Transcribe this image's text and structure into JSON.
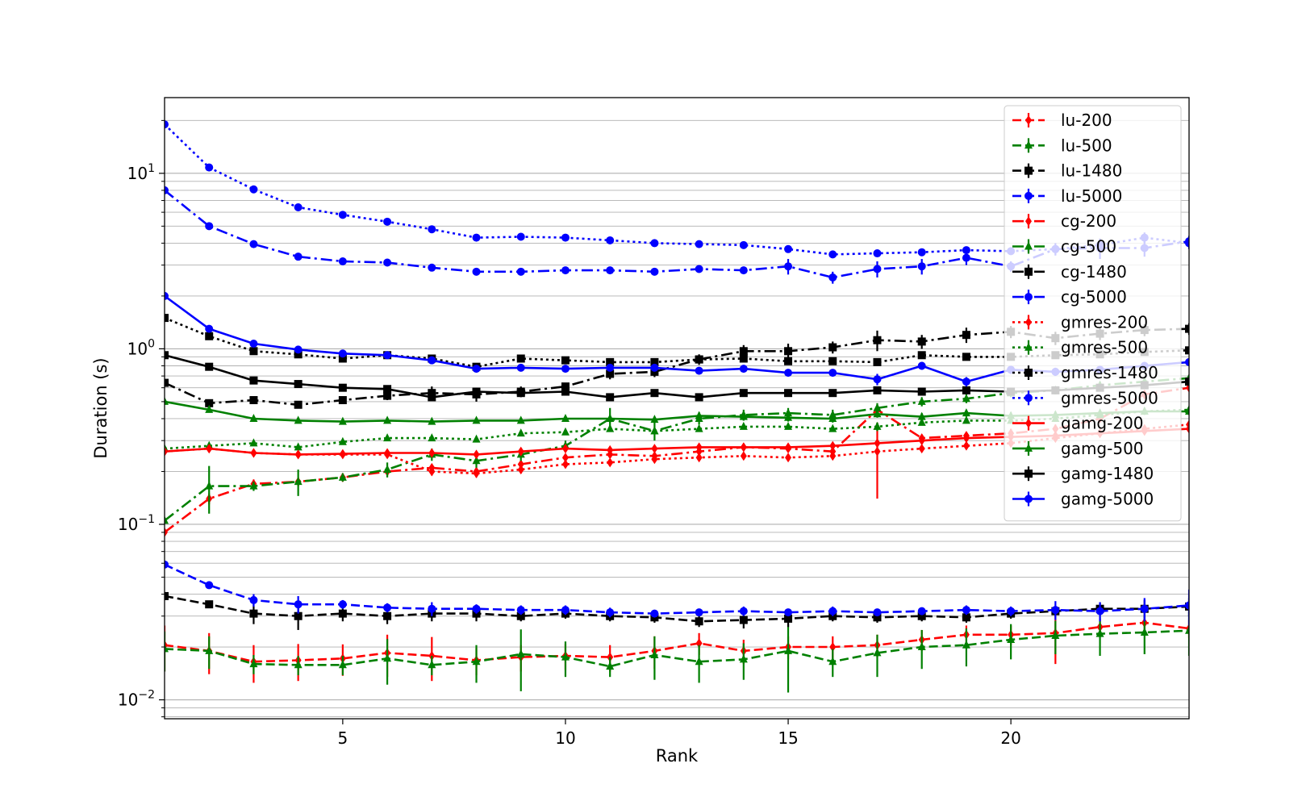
{
  "chart_data": {
    "type": "line",
    "title": "",
    "xlabel": "Rank",
    "ylabel": "Duration (s)",
    "xlim": [
      1,
      24
    ],
    "ylim": [
      0.0078,
      27
    ],
    "yscale": "log",
    "grid": "y-major-and-minor",
    "legend_position": "top-right",
    "x": [
      1,
      2,
      3,
      4,
      5,
      6,
      7,
      8,
      9,
      10,
      11,
      12,
      13,
      14,
      15,
      16,
      17,
      18,
      19,
      20,
      21,
      22,
      23,
      24
    ],
    "x_ticks": [
      {
        "value": 5,
        "label": "5"
      },
      {
        "value": 10,
        "label": "10"
      },
      {
        "value": 15,
        "label": "15"
      },
      {
        "value": 20,
        "label": "20"
      }
    ],
    "y_ticks": [
      {
        "value": 0.01,
        "base": "10",
        "exp": "−2"
      },
      {
        "value": 0.1,
        "base": "10",
        "exp": "−1"
      },
      {
        "value": 1,
        "base": "10",
        "exp": "0"
      },
      {
        "value": 10,
        "base": "10",
        "exp": "1"
      }
    ],
    "series": [
      {
        "name": "lu-200",
        "color": "#ff0000",
        "dash": "dashed",
        "marker": "diamond",
        "values": [
          0.0205,
          0.019,
          0.0165,
          0.0168,
          0.0172,
          0.0185,
          0.0178,
          0.0168,
          0.0175,
          0.0178,
          0.0175,
          0.019,
          0.021,
          0.019,
          0.02,
          0.02,
          0.0205,
          0.022,
          0.0235,
          0.0235,
          0.024,
          0.026,
          0.0275,
          0.0255
        ],
        "err": [
          0.006,
          0.005,
          0.004,
          0.004,
          0.0035,
          0.005,
          0.005,
          0.003,
          0.003,
          0.003,
          0.003,
          0.004,
          0.003,
          0.003,
          0.003,
          0.003,
          0.003,
          0.003,
          0.003,
          0.003,
          0.008,
          0.003,
          0.003,
          0.003
        ]
      },
      {
        "name": "lu-500",
        "color": "#008000",
        "dash": "dashed",
        "marker": "triangle",
        "values": [
          0.0195,
          0.019,
          0.016,
          0.0158,
          0.0158,
          0.0172,
          0.0158,
          0.0165,
          0.0182,
          0.0175,
          0.0155,
          0.018,
          0.0165,
          0.017,
          0.019,
          0.0165,
          0.0185,
          0.02,
          0.0205,
          0.022,
          0.0232,
          0.0238,
          0.0242,
          0.0248
        ],
        "err": [
          0.005,
          0.004,
          0.002,
          0.002,
          0.002,
          0.005,
          0.002,
          0.004,
          0.007,
          0.004,
          0.002,
          0.005,
          0.004,
          0.004,
          0.008,
          0.003,
          0.005,
          0.005,
          0.005,
          0.005,
          0.005,
          0.006,
          0.006,
          0.007
        ]
      },
      {
        "name": "lu-1480",
        "color": "#000000",
        "dash": "dashed",
        "marker": "square",
        "values": [
          0.039,
          0.035,
          0.031,
          0.03,
          0.031,
          0.03,
          0.031,
          0.031,
          0.03,
          0.031,
          0.03,
          0.0295,
          0.028,
          0.0285,
          0.029,
          0.03,
          0.0295,
          0.03,
          0.0295,
          0.031,
          0.032,
          0.033,
          0.033,
          0.034
        ],
        "err": [
          0.001,
          0.001,
          0.004,
          0.005,
          0.003,
          0.003,
          0.003,
          0.003,
          0.002,
          0.002,
          0.002,
          0.002,
          0.002,
          0.003,
          0.003,
          0.002,
          0.002,
          0.002,
          0.002,
          0.002,
          0.002,
          0.003,
          0.004,
          0.004
        ]
      },
      {
        "name": "lu-5000",
        "color": "#0000ff",
        "dash": "dashed",
        "marker": "circle",
        "values": [
          0.059,
          0.045,
          0.037,
          0.035,
          0.035,
          0.0335,
          0.033,
          0.033,
          0.0325,
          0.0325,
          0.0315,
          0.031,
          0.0315,
          0.032,
          0.0315,
          0.032,
          0.0315,
          0.032,
          0.0325,
          0.032,
          0.0325,
          0.032,
          0.033,
          0.0345
        ],
        "err": [
          0.001,
          0.001,
          0.003,
          0.004,
          0.002,
          0.002,
          0.003,
          0.002,
          0.002,
          0.002,
          0.002,
          0.001,
          0.001,
          0.002,
          0.001,
          0.002,
          0.001,
          0.001,
          0.002,
          0.002,
          0.004,
          0.004,
          0.005,
          0.008
        ]
      },
      {
        "name": "cg-200",
        "color": "#ff0000",
        "dash": "dashdot",
        "marker": "diamond",
        "values": [
          0.09,
          0.14,
          0.17,
          0.175,
          0.185,
          0.2,
          0.21,
          0.2,
          0.22,
          0.24,
          0.25,
          0.245,
          0.26,
          0.275,
          0.27,
          0.26,
          0.45,
          0.31,
          0.32,
          0.33,
          0.35,
          0.4,
          0.55,
          0.6
        ],
        "err": [
          0,
          0.01,
          0.01,
          0.01,
          0.01,
          0.01,
          0.01,
          0.01,
          0.01,
          0.01,
          0.01,
          0.01,
          0.01,
          0.01,
          0.01,
          0.01,
          0.03,
          0.01,
          0.01,
          0.02,
          0.02,
          0.02,
          0.03,
          0.03
        ]
      },
      {
        "name": "cg-500",
        "color": "#008000",
        "dash": "dashdot",
        "marker": "triangle",
        "values": [
          0.105,
          0.165,
          0.165,
          0.175,
          0.185,
          0.205,
          0.25,
          0.23,
          0.25,
          0.28,
          0.4,
          0.34,
          0.4,
          0.42,
          0.43,
          0.42,
          0.46,
          0.5,
          0.52,
          0.56,
          0.58,
          0.62,
          0.65,
          0.68
        ],
        "err": [
          0,
          0.05,
          0.01,
          0.03,
          0.01,
          0.02,
          0.02,
          0.02,
          0.02,
          0.02,
          0.06,
          0.04,
          0.03,
          0.03,
          0.03,
          0.03,
          0.03,
          0.03,
          0.03,
          0.03,
          0.03,
          0.03,
          0.03,
          0.03
        ]
      },
      {
        "name": "cg-1480",
        "color": "#000000",
        "dash": "dashdot",
        "marker": "square",
        "values": [
          0.64,
          0.49,
          0.51,
          0.48,
          0.51,
          0.54,
          0.56,
          0.55,
          0.57,
          0.61,
          0.72,
          0.74,
          0.87,
          0.97,
          0.97,
          1.02,
          1.12,
          1.1,
          1.2,
          1.25,
          1.15,
          1.22,
          1.28,
          1.3
        ],
        "err": [
          0,
          0.02,
          0.02,
          0.02,
          0.02,
          0.03,
          0.05,
          0.05,
          0.04,
          0.03,
          0.05,
          0.05,
          0.06,
          0.08,
          0.1,
          0.08,
          0.15,
          0.1,
          0.12,
          0.1,
          0.1,
          0.1,
          0.1,
          0.1
        ]
      },
      {
        "name": "cg-5000",
        "color": "#0000ff",
        "dash": "dashdot",
        "marker": "circle",
        "values": [
          8.0,
          5.0,
          3.95,
          3.35,
          3.15,
          3.1,
          2.9,
          2.75,
          2.75,
          2.8,
          2.8,
          2.75,
          2.85,
          2.8,
          2.95,
          2.55,
          2.85,
          2.95,
          3.3,
          2.95,
          3.7,
          3.75,
          3.75,
          4.1
        ],
        "err": [
          0,
          0,
          0.05,
          0.05,
          0.05,
          0.05,
          0.05,
          0.05,
          0.05,
          0.05,
          0.05,
          0.05,
          0.05,
          0.05,
          0.3,
          0.2,
          0.3,
          0.3,
          0.3,
          0.2,
          0.3,
          0.5,
          0.4,
          0.3
        ]
      },
      {
        "name": "gmres-200",
        "color": "#ff0000",
        "dash": "dotted",
        "marker": "diamond",
        "values": [
          0.26,
          0.27,
          0.255,
          0.25,
          0.25,
          0.25,
          0.2,
          0.195,
          0.205,
          0.22,
          0.225,
          0.235,
          0.24,
          0.245,
          0.24,
          0.245,
          0.26,
          0.27,
          0.28,
          0.29,
          0.31,
          0.33,
          0.35,
          0.37
        ],
        "err": [
          0,
          0.01,
          0.01,
          0.01,
          0.01,
          0.01,
          0.01,
          0.01,
          0.01,
          0.01,
          0.01,
          0.01,
          0.01,
          0.01,
          0.01,
          0.01,
          0.12,
          0.01,
          0.01,
          0.01,
          0.01,
          0.01,
          0.01,
          0.01
        ]
      },
      {
        "name": "gmres-500",
        "color": "#008000",
        "dash": "dotted",
        "marker": "triangle",
        "values": [
          0.27,
          0.28,
          0.29,
          0.275,
          0.295,
          0.31,
          0.31,
          0.305,
          0.33,
          0.335,
          0.35,
          0.34,
          0.35,
          0.36,
          0.36,
          0.35,
          0.36,
          0.38,
          0.39,
          0.39,
          0.4,
          0.42,
          0.44,
          0.45
        ],
        "err": [
          0,
          0.01,
          0.01,
          0.01,
          0.01,
          0.01,
          0.01,
          0.01,
          0.01,
          0.01,
          0.01,
          0.01,
          0.01,
          0.01,
          0.01,
          0.01,
          0.02,
          0.01,
          0.01,
          0.01,
          0.01,
          0.01,
          0.01,
          0.01
        ]
      },
      {
        "name": "gmres-1480",
        "color": "#000000",
        "dash": "dotted",
        "marker": "square",
        "values": [
          1.5,
          1.18,
          0.97,
          0.93,
          0.88,
          0.92,
          0.88,
          0.79,
          0.88,
          0.86,
          0.84,
          0.84,
          0.87,
          0.88,
          0.85,
          0.85,
          0.84,
          0.92,
          0.9,
          0.9,
          0.92,
          0.93,
          0.96,
          0.98
        ],
        "err": [
          0,
          0.03,
          0.03,
          0.03,
          0.03,
          0.03,
          0.03,
          0.03,
          0.03,
          0.03,
          0.03,
          0.03,
          0.03,
          0.03,
          0.03,
          0.03,
          0.03,
          0.03,
          0.03,
          0.03,
          0.03,
          0.03,
          0.03,
          0.03
        ]
      },
      {
        "name": "gmres-5000",
        "color": "#0000ff",
        "dash": "dotted",
        "marker": "circle",
        "values": [
          19.0,
          10.8,
          8.1,
          6.4,
          5.8,
          5.3,
          4.8,
          4.3,
          4.35,
          4.3,
          4.15,
          4.0,
          3.95,
          3.9,
          3.7,
          3.45,
          3.5,
          3.55,
          3.65,
          3.6,
          3.7,
          3.9,
          4.3,
          4.0
        ],
        "err": [
          0,
          0,
          0.05,
          0.05,
          0.05,
          0.05,
          0.05,
          0.05,
          0.05,
          0.05,
          0.05,
          0.05,
          0.05,
          0.05,
          0.05,
          0.05,
          0.05,
          0.05,
          0.05,
          0.1,
          0.1,
          0.2,
          0.3,
          0.3
        ]
      },
      {
        "name": "gamg-200",
        "color": "#ff0000",
        "dash": "solid",
        "marker": "diamond",
        "values": [
          0.26,
          0.27,
          0.255,
          0.25,
          0.252,
          0.255,
          0.255,
          0.25,
          0.26,
          0.27,
          0.265,
          0.27,
          0.275,
          0.275,
          0.275,
          0.28,
          0.29,
          0.3,
          0.31,
          0.315,
          0.32,
          0.33,
          0.34,
          0.35
        ],
        "err": [
          0,
          0.01,
          0.01,
          0.01,
          0.01,
          0.01,
          0.01,
          0.01,
          0.01,
          0.01,
          0.01,
          0.01,
          0.01,
          0.01,
          0.01,
          0.01,
          0.01,
          0.01,
          0.01,
          0.01,
          0.01,
          0.01,
          0.01,
          0.01
        ]
      },
      {
        "name": "gamg-500",
        "color": "#008000",
        "dash": "solid",
        "marker": "triangle",
        "values": [
          0.5,
          0.45,
          0.4,
          0.39,
          0.385,
          0.39,
          0.385,
          0.39,
          0.39,
          0.4,
          0.4,
          0.395,
          0.415,
          0.41,
          0.405,
          0.4,
          0.425,
          0.41,
          0.43,
          0.415,
          0.42,
          0.43,
          0.44,
          0.44
        ],
        "err": [
          0,
          0.01,
          0.01,
          0.01,
          0.01,
          0.01,
          0.01,
          0.01,
          0.01,
          0.01,
          0.02,
          0.01,
          0.02,
          0.02,
          0.02,
          0.02,
          0.02,
          0.02,
          0.02,
          0.02,
          0.02,
          0.02,
          0.02,
          0.02
        ]
      },
      {
        "name": "gamg-1480",
        "color": "#000000",
        "dash": "solid",
        "marker": "square",
        "values": [
          0.92,
          0.79,
          0.66,
          0.63,
          0.6,
          0.59,
          0.53,
          0.57,
          0.56,
          0.57,
          0.53,
          0.56,
          0.53,
          0.56,
          0.56,
          0.56,
          0.58,
          0.57,
          0.58,
          0.57,
          0.58,
          0.6,
          0.62,
          0.65
        ],
        "err": [
          0,
          0.02,
          0.03,
          0.02,
          0.02,
          0.02,
          0.02,
          0.02,
          0.02,
          0.02,
          0.02,
          0.02,
          0.02,
          0.02,
          0.02,
          0.02,
          0.02,
          0.02,
          0.02,
          0.02,
          0.02,
          0.02,
          0.02,
          0.02
        ]
      },
      {
        "name": "gamg-5000",
        "color": "#0000ff",
        "dash": "solid",
        "marker": "circle",
        "values": [
          2.0,
          1.3,
          1.07,
          0.99,
          0.94,
          0.92,
          0.86,
          0.77,
          0.78,
          0.77,
          0.78,
          0.78,
          0.75,
          0.77,
          0.73,
          0.73,
          0.67,
          0.8,
          0.65,
          0.76,
          0.74,
          0.76,
          0.8,
          0.84
        ],
        "err": [
          0,
          0,
          0.02,
          0.03,
          0.03,
          0.03,
          0.04,
          0.03,
          0.03,
          0.03,
          0.03,
          0.03,
          0.03,
          0.03,
          0.03,
          0.03,
          0.05,
          0.04,
          0.04,
          0.04,
          0.04,
          0.04,
          0.04,
          0.04
        ]
      }
    ]
  }
}
